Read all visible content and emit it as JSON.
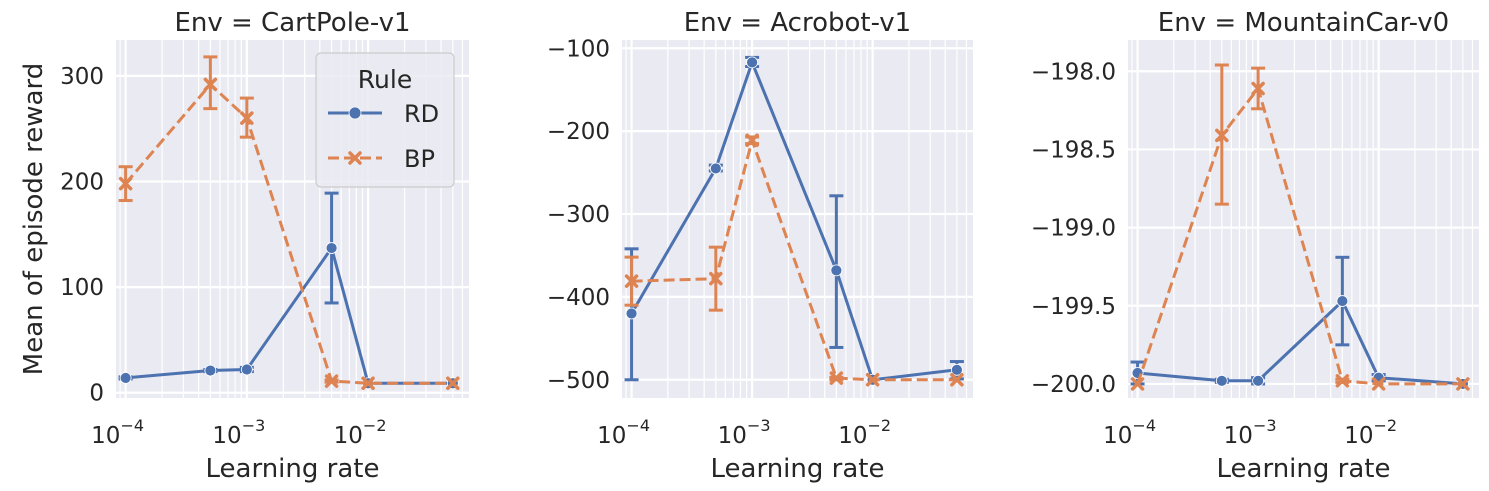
{
  "colors": {
    "rd": "#4c72b0",
    "bp": "#dd8452",
    "panel_bg": "#eaeaf2",
    "grid": "#ffffff"
  },
  "legend": {
    "title": "Rule",
    "entries": [
      "RD",
      "BP"
    ],
    "placement": "top-right",
    "panel": 0
  },
  "chart_data": [
    {
      "type": "line",
      "title": "Env = CartPole-v1",
      "xlabel": "Learning rate",
      "ylabel": "Mean of episode reward",
      "xscale": "log",
      "xlim": [
        8.33e-05,
        0.068
      ],
      "xticks": [
        {
          "value": 0.0001,
          "label": "10",
          "exp": "−4"
        },
        {
          "value": 0.001,
          "label": "10",
          "exp": "−3"
        },
        {
          "value": 0.01,
          "label": "10",
          "exp": "−2"
        }
      ],
      "ylim": [
        -5,
        334
      ],
      "yticks": [
        {
          "value": 0,
          "label": "0"
        },
        {
          "value": 100,
          "label": "100"
        },
        {
          "value": 200,
          "label": "200"
        },
        {
          "value": 300,
          "label": "300"
        }
      ],
      "grid": true,
      "series": [
        {
          "name": "RD",
          "marker": "circle",
          "dash": "solid",
          "x": [
            0.0001,
            0.0005,
            0.001,
            0.005,
            0.01,
            0.05
          ],
          "y": [
            14,
            21,
            22,
            137,
            9,
            9
          ],
          "err": [
            [
              13,
              15
            ],
            [
              20,
              22
            ],
            [
              20,
              24
            ],
            [
              85,
              189
            ],
            [
              9,
              9
            ],
            [
              9,
              9
            ]
          ]
        },
        {
          "name": "BP",
          "marker": "x",
          "dash": "dashed",
          "x": [
            0.0001,
            0.0005,
            0.001,
            0.005,
            0.01,
            0.05
          ],
          "y": [
            198,
            292,
            260,
            11,
            9,
            9
          ],
          "err": [
            [
              182,
              214
            ],
            [
              269,
              318
            ],
            [
              242,
              279
            ],
            [
              10,
              12
            ],
            [
              9,
              9
            ],
            [
              9,
              9
            ]
          ]
        }
      ]
    },
    {
      "type": "line",
      "title": "Env = Acrobot-v1",
      "xlabel": "Learning rate",
      "ylabel": "",
      "xscale": "log",
      "xlim": [
        8.33e-05,
        0.068
      ],
      "xticks": [
        {
          "value": 0.0001,
          "label": "10",
          "exp": "−4"
        },
        {
          "value": 0.001,
          "label": "10",
          "exp": "−3"
        },
        {
          "value": 0.01,
          "label": "10",
          "exp": "−2"
        }
      ],
      "ylim": [
        -522,
        -90
      ],
      "yticks": [
        {
          "value": -500,
          "label": "−500"
        },
        {
          "value": -400,
          "label": "−400"
        },
        {
          "value": -300,
          "label": "−300"
        },
        {
          "value": -200,
          "label": "−200"
        },
        {
          "value": -100,
          "label": "−100"
        }
      ],
      "grid": true,
      "series": [
        {
          "name": "RD",
          "marker": "circle",
          "dash": "solid",
          "x": [
            0.0001,
            0.0005,
            0.001,
            0.005,
            0.01,
            0.05
          ],
          "y": [
            -420,
            -245,
            -117,
            -368,
            -500,
            -488
          ],
          "err": [
            [
              -500,
              -342
            ],
            [
              -248,
              -241
            ],
            [
              -122,
              -111
            ],
            [
              -461,
              -278
            ],
            [
              -500,
              -500
            ],
            [
              -499,
              -478
            ]
          ]
        },
        {
          "name": "BP",
          "marker": "x",
          "dash": "dashed",
          "x": [
            0.0001,
            0.0005,
            0.001,
            0.005,
            0.01,
            0.05
          ],
          "y": [
            -381,
            -378,
            -211,
            -498,
            -500,
            -500
          ],
          "err": [
            [
              -410,
              -352
            ],
            [
              -416,
              -340
            ],
            [
              -215,
              -207
            ],
            [
              -500,
              -497
            ],
            [
              -500,
              -500
            ],
            [
              -500,
              -500
            ]
          ]
        }
      ]
    },
    {
      "type": "line",
      "title": "Env = MountainCar-v0",
      "xlabel": "Learning rate",
      "ylabel": "",
      "xscale": "log",
      "xlim": [
        8.33e-05,
        0.068
      ],
      "xticks": [
        {
          "value": 0.0001,
          "label": "10",
          "exp": "−4"
        },
        {
          "value": 0.001,
          "label": "10",
          "exp": "−3"
        },
        {
          "value": 0.01,
          "label": "10",
          "exp": "−2"
        }
      ],
      "ylim": [
        -200.09,
        -197.8
      ],
      "yticks": [
        {
          "value": -200,
          "label": "−200.0"
        },
        {
          "value": -199.5,
          "label": "−199.5"
        },
        {
          "value": -199,
          "label": "−199.0"
        },
        {
          "value": -198.5,
          "label": "−198.5"
        },
        {
          "value": -198,
          "label": "−198.0"
        }
      ],
      "grid": true,
      "series": [
        {
          "name": "RD",
          "marker": "circle",
          "dash": "solid",
          "x": [
            0.0001,
            0.0005,
            0.001,
            0.005,
            0.01,
            0.05
          ],
          "y": [
            -199.93,
            -199.98,
            -199.98,
            -199.47,
            -199.96,
            -200.0
          ],
          "err": [
            [
              -200.0,
              -199.86
            ],
            [
              -199.99,
              -199.97
            ],
            [
              -200.0,
              -199.96
            ],
            [
              -199.75,
              -199.19
            ],
            [
              -199.98,
              -199.94
            ],
            [
              -200.0,
              -200.0
            ]
          ]
        },
        {
          "name": "BP",
          "marker": "x",
          "dash": "dashed",
          "x": [
            0.0001,
            0.0005,
            0.001,
            0.005,
            0.01,
            0.05
          ],
          "y": [
            -200.0,
            -198.41,
            -198.11,
            -199.98,
            -200.0,
            -200.0
          ],
          "err": [
            [
              -200.0,
              -200.0
            ],
            [
              -198.85,
              -197.96
            ],
            [
              -198.24,
              -197.98
            ],
            [
              -199.99,
              -199.97
            ],
            [
              -200.0,
              -200.0
            ],
            [
              -200.0,
              -200.0
            ]
          ]
        }
      ]
    }
  ]
}
